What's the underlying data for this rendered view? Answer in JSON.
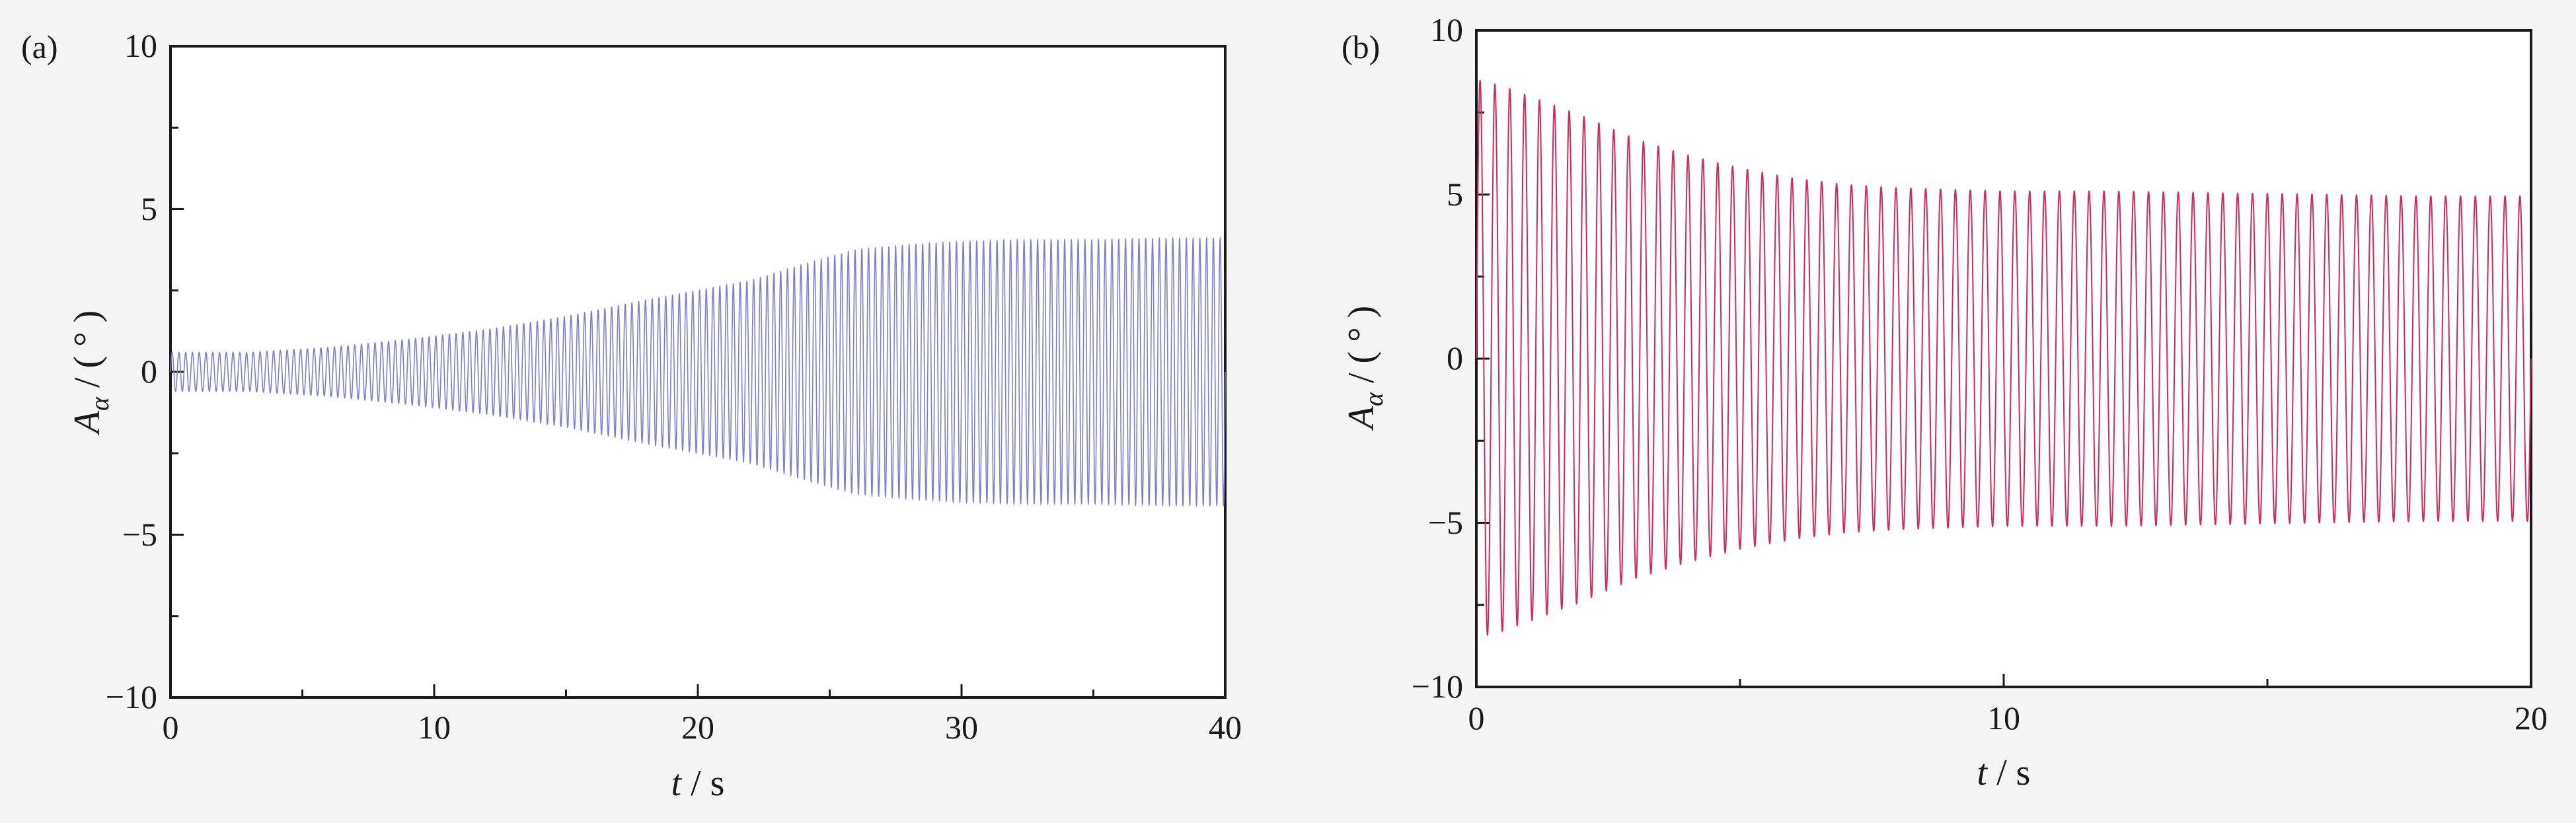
{
  "chart_data": [
    {
      "panel": "(a)",
      "type": "line",
      "xlabel_var": "t",
      "xlabel_unit": " / s",
      "ylabel_var": "A",
      "ylabel_sub": "α",
      "ylabel_unit": " / ( ° )",
      "xlim": [
        0,
        40
      ],
      "ylim": [
        -10,
        10
      ],
      "xticks": [
        "0",
        "10",
        "20",
        "30",
        "40"
      ],
      "yticks": [
        "10",
        "5",
        "0",
        "−5",
        "−10"
      ],
      "grid": false,
      "color": "#7b7fd6",
      "oscillation_frequency_hz": 3.9,
      "envelope": {
        "t": [
          0,
          3,
          6,
          9,
          12,
          15,
          18,
          20,
          22,
          24,
          26,
          28,
          30,
          32,
          35,
          38,
          40
        ],
        "amplitude": [
          0.6,
          0.6,
          0.75,
          1.0,
          1.3,
          1.7,
          2.2,
          2.5,
          2.8,
          3.3,
          3.75,
          3.9,
          4.0,
          4.05,
          4.05,
          4.1,
          4.1
        ]
      }
    },
    {
      "panel": "(b)",
      "type": "line",
      "xlabel_var": "t",
      "xlabel_unit": " / s",
      "ylabel_var": "A",
      "ylabel_sub": "α",
      "ylabel_unit": " / ( ° )",
      "xlim": [
        0,
        20
      ],
      "ylim": [
        -10,
        10
      ],
      "xticks": [
        "0",
        "10",
        "20"
      ],
      "yticks": [
        "10",
        "5",
        "0",
        "−5",
        "−10"
      ],
      "grid": false,
      "color": "#d4285f",
      "oscillation_frequency_hz": 3.55,
      "envelope": {
        "t": [
          0,
          0.5,
          1,
          2,
          3,
          4,
          5,
          6,
          7,
          8,
          10,
          12,
          14,
          16,
          18,
          20
        ],
        "amplitude": [
          8.5,
          8.3,
          8.0,
          7.4,
          6.7,
          6.2,
          5.8,
          5.5,
          5.3,
          5.2,
          5.1,
          5.1,
          5.05,
          5.0,
          4.95,
          4.95
        ]
      }
    }
  ]
}
